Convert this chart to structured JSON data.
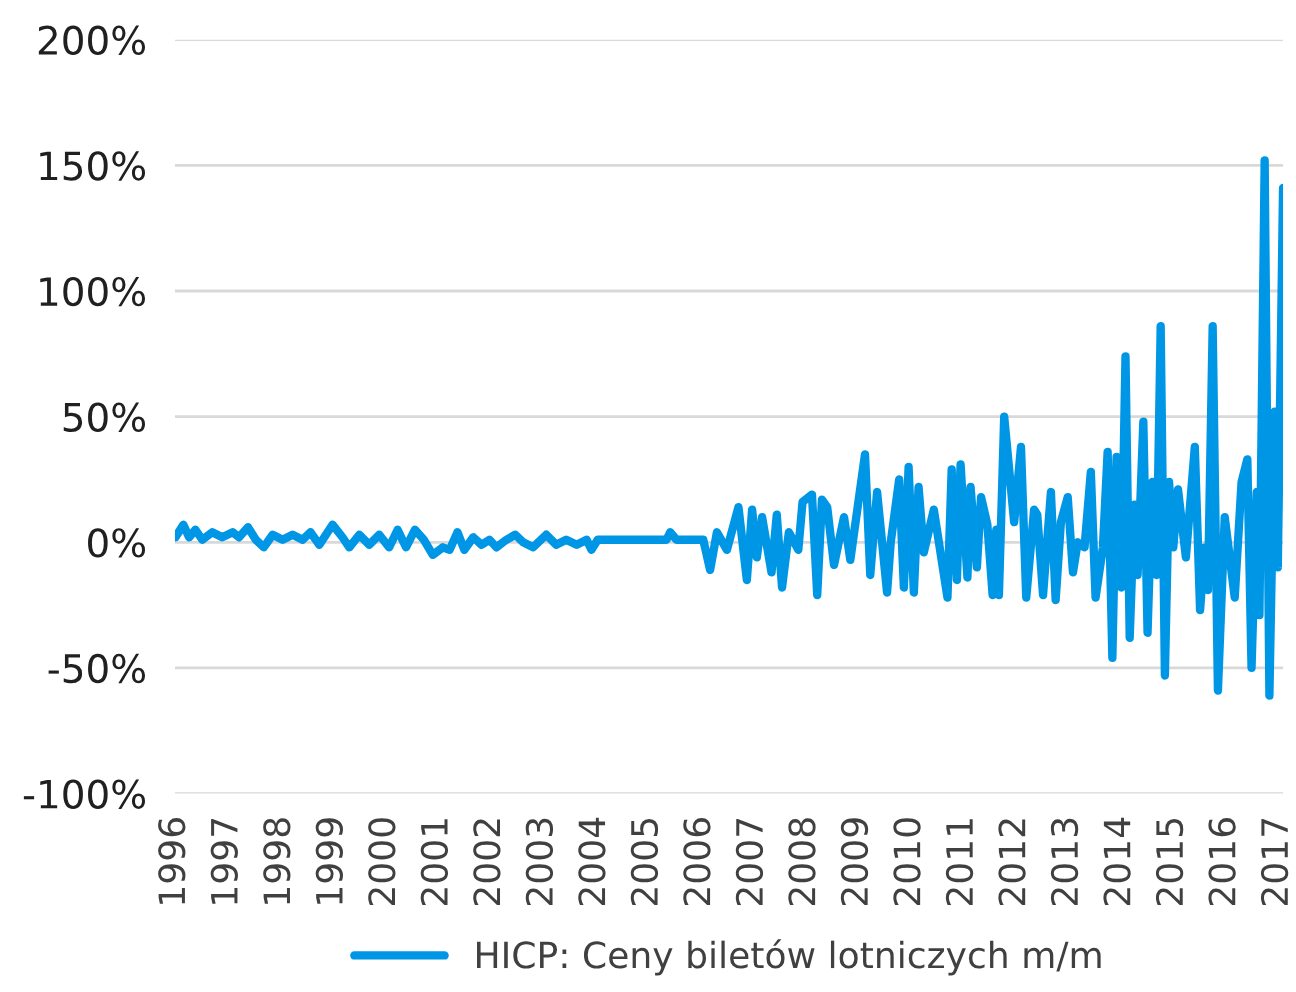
{
  "chart_data": {
    "type": "line",
    "x": [
      1996.01,
      1996.16,
      1996.27,
      1996.39,
      1996.52,
      1996.71,
      1996.9,
      1997.1,
      1997.22,
      1997.39,
      1997.54,
      1997.69,
      1997.86,
      1998.05,
      1998.24,
      1998.43,
      1998.58,
      1998.75,
      1999.0,
      1999.19,
      1999.32,
      1999.51,
      1999.7,
      1999.89,
      2000.08,
      2000.24,
      2000.4,
      2000.57,
      2000.74,
      2000.91,
      2001.1,
      2001.23,
      2001.38,
      2001.51,
      2001.68,
      2001.84,
      2001.99,
      2002.12,
      2002.31,
      2002.48,
      2002.63,
      2002.82,
      2003.07,
      2003.26,
      2003.45,
      2003.65,
      2003.84,
      2003.93,
      2004.05,
      2004.41,
      2004.92,
      2005.36,
      2005.43,
      2005.55,
      2006.06,
      2006.19,
      2006.32,
      2006.51,
      2006.73,
      2006.89,
      2006.99,
      2007.08,
      2007.18,
      2007.36,
      2007.46,
      2007.56,
      2007.69,
      2007.87,
      2007.95,
      2008.13,
      2008.23,
      2008.32,
      2008.42,
      2008.55,
      2008.74,
      2008.86,
      2009.14,
      2009.24,
      2009.37,
      2009.56,
      2009.63,
      2009.79,
      2009.88,
      2009.97,
      2010.07,
      2010.16,
      2010.26,
      2010.45,
      2010.71,
      2010.79,
      2010.89,
      2010.96,
      2011.09,
      2011.15,
      2011.27,
      2011.35,
      2011.47,
      2011.57,
      2011.64,
      2011.69,
      2011.79,
      2011.98,
      2012.11,
      2012.21,
      2012.36,
      2012.42,
      2012.53,
      2012.68,
      2012.77,
      2012.87,
      2013.0,
      2013.1,
      2013.19,
      2013.32,
      2013.44,
      2013.53,
      2013.67,
      2013.76,
      2013.85,
      2013.93,
      2014.02,
      2014.1,
      2014.18,
      2014.27,
      2014.33,
      2014.44,
      2014.52,
      2014.61,
      2014.69,
      2014.77,
      2014.85,
      2014.93,
      2015.01,
      2015.1,
      2015.25,
      2015.42,
      2015.52,
      2015.61,
      2015.67,
      2015.76,
      2015.86,
      2015.99,
      2016.18,
      2016.31,
      2016.42,
      2016.5,
      2016.6,
      2016.65,
      2016.75,
      2016.84,
      2016.94,
      2017.0,
      2017.1
    ],
    "series": [
      {
        "name": "HICP: Ceny biletów lotniczych m/m",
        "color": "#0096e6",
        "values": [
          2,
          7,
          2,
          5,
          1,
          4,
          2,
          4,
          2,
          6,
          1,
          -2,
          3,
          1,
          3,
          1,
          4,
          -1,
          7,
          2,
          -2,
          3,
          -1,
          3,
          -2,
          5,
          -2,
          5,
          1,
          -5,
          -2,
          -3,
          4,
          -3,
          2,
          -1,
          1,
          -2,
          1,
          3,
          0,
          -2,
          3,
          -1,
          1,
          -1,
          1,
          -3,
          1,
          1,
          1,
          1,
          4,
          1,
          1,
          -11,
          4,
          -3,
          14,
          -15,
          13,
          -6,
          10,
          -12,
          11,
          -18,
          4,
          -3,
          16,
          19,
          -21,
          17,
          14,
          -9,
          10,
          -7,
          35,
          -13,
          20,
          -20,
          0,
          25,
          -18,
          30,
          -20,
          22,
          -4,
          13,
          -22,
          29,
          -15,
          31,
          -14,
          22,
          -10,
          18,
          7,
          -21,
          5,
          -21,
          50,
          8,
          38,
          -22,
          13,
          11,
          -21,
          20,
          -23,
          8,
          18,
          -12,
          0,
          -2,
          28,
          -22,
          -2,
          36,
          -46,
          34,
          -18,
          74,
          -38,
          15,
          -13,
          48,
          -36,
          24,
          -13,
          86,
          -53,
          24,
          -2,
          21,
          -6,
          38,
          -27,
          -2,
          -19,
          86,
          -59,
          10,
          -22,
          24,
          33,
          -50,
          20,
          -29,
          152,
          -61,
          52,
          -10,
          141
        ]
      }
    ],
    "xlim": [
      1996,
      2017.1
    ],
    "xticks": [
      1996,
      1997,
      1998,
      1999,
      2000,
      2001,
      2002,
      2003,
      2004,
      2005,
      2006,
      2007,
      2008,
      2009,
      2010,
      2011,
      2012,
      2013,
      2014,
      2015,
      2016,
      2017
    ],
    "ylim": [
      -100,
      200
    ],
    "yticks": [
      {
        "value": -100,
        "label": "-100%"
      },
      {
        "value": -50,
        "label": "-50%"
      },
      {
        "value": 0,
        "label": "0%"
      },
      {
        "value": 50,
        "label": "50%"
      },
      {
        "value": 100,
        "label": "100%"
      },
      {
        "value": 150,
        "label": "150%"
      },
      {
        "value": 200,
        "label": "200%"
      }
    ],
    "grid": "y",
    "legend": "bottom",
    "marker": "none",
    "line_style": "solid"
  }
}
